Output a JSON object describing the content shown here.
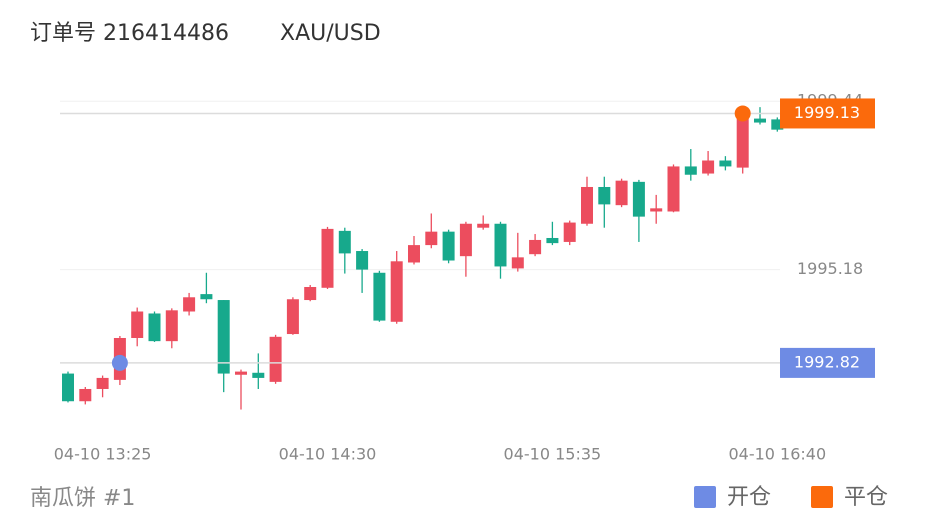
{
  "chart_data": {
    "type": "candlestick",
    "title": "订单号 216414486",
    "subtitle": "XAU/USD",
    "caption": "南瓜饼 #1",
    "categories": [
      null,
      null,
      "04-10 13:25",
      null,
      null,
      null,
      null,
      null,
      null,
      null,
      null,
      null,
      null,
      null,
      null,
      "04-10 14:30",
      null,
      null,
      null,
      null,
      null,
      null,
      null,
      null,
      null,
      null,
      null,
      null,
      "04-10 15:35",
      null,
      null,
      null,
      null,
      null,
      null,
      null,
      null,
      null,
      null,
      null,
      null,
      "04-10 16:40"
    ],
    "open": [
      1992.55,
      1991.85,
      1992.16,
      1992.39,
      1993.45,
      1994.07,
      1993.37,
      1994.12,
      1994.56,
      1994.41,
      1992.52,
      1992.57,
      1992.34,
      1993.55,
      1994.41,
      1994.72,
      1996.16,
      1995.65,
      1995.1,
      1993.86,
      1995.36,
      1995.8,
      1996.14,
      1995.52,
      1996.24,
      1996.34,
      1995.21,
      1995.57,
      1995.98,
      1995.88,
      1996.34,
      1997.27,
      1996.81,
      1997.4,
      1996.65,
      1996.65,
      1997.79,
      1997.61,
      1997.94,
      1997.76,
      1999.0,
      1998.98
    ],
    "high": [
      1992.6,
      1992.21,
      1992.5,
      1993.5,
      1994.22,
      1994.12,
      1994.2,
      1994.59,
      1995.1,
      1994.41,
      1992.65,
      1993.06,
      1993.53,
      1994.48,
      1994.79,
      1996.26,
      1996.24,
      1995.7,
      1995.15,
      1995.65,
      1996.03,
      1996.6,
      1996.19,
      1996.39,
      1996.55,
      1996.39,
      1996.11,
      1996.08,
      1996.39,
      1996.42,
      1997.53,
      1997.53,
      1997.48,
      1997.45,
      1997.07,
      1997.84,
      1998.23,
      1998.18,
      1998.05,
      1999.13,
      1999.29,
      1999.03
    ],
    "low": [
      1991.82,
      1991.77,
      1991.95,
      1992.26,
      1993.24,
      1993.35,
      1993.19,
      1994.02,
      1994.33,
      1992.08,
      1991.64,
      1992.16,
      1992.29,
      1993.53,
      1994.38,
      1994.69,
      1995.08,
      1994.59,
      1993.86,
      1993.81,
      1995.31,
      1995.72,
      1995.34,
      1995.0,
      1996.19,
      1994.95,
      1995.13,
      1995.52,
      1995.8,
      1995.8,
      1996.29,
      1996.24,
      1996.76,
      1995.88,
      1996.34,
      1996.63,
      1997.43,
      1997.56,
      1997.69,
      1997.61,
      1998.85,
      1998.67
    ],
    "close": [
      1991.85,
      1992.16,
      1992.44,
      1993.45,
      1994.12,
      1993.37,
      1994.15,
      1994.48,
      1994.43,
      1992.55,
      1992.6,
      1992.44,
      1993.48,
      1994.43,
      1994.74,
      1996.21,
      1995.59,
      1995.18,
      1993.89,
      1995.39,
      1995.8,
      1996.14,
      1995.41,
      1996.34,
      1996.34,
      1995.26,
      1995.49,
      1995.93,
      1995.85,
      1996.37,
      1997.27,
      1996.83,
      1997.43,
      1996.52,
      1996.73,
      1997.79,
      1997.58,
      1997.94,
      1997.79,
      1999.08,
      1998.9,
      1998.72
    ],
    "up_color": "#ec4d5e",
    "down_color": "#17a98c",
    "series": [
      {
        "name": "开仓",
        "color": "#6e8be4",
        "values": [
          null,
          null,
          null,
          1992.82,
          null,
          null,
          null,
          null,
          null,
          null,
          null,
          null,
          null,
          null,
          null,
          null,
          null,
          null,
          null,
          null,
          null,
          null,
          null,
          null,
          null,
          null,
          null,
          null,
          null,
          null,
          null,
          null,
          null,
          null,
          null,
          null,
          null,
          null,
          null,
          null,
          null,
          null
        ]
      },
      {
        "name": "平仓",
        "color": "#fb6a0c",
        "values": [
          null,
          null,
          null,
          null,
          null,
          null,
          null,
          null,
          null,
          null,
          null,
          null,
          null,
          null,
          null,
          null,
          null,
          null,
          null,
          null,
          null,
          null,
          null,
          null,
          null,
          null,
          null,
          null,
          null,
          null,
          null,
          null,
          null,
          null,
          null,
          null,
          null,
          null,
          null,
          1999.13,
          null,
          null
        ]
      }
    ],
    "ylim": [
      1990.92,
      1999.85
    ],
    "yticks": [
      1995.18,
      1999.44
    ],
    "grid": true
  }
}
